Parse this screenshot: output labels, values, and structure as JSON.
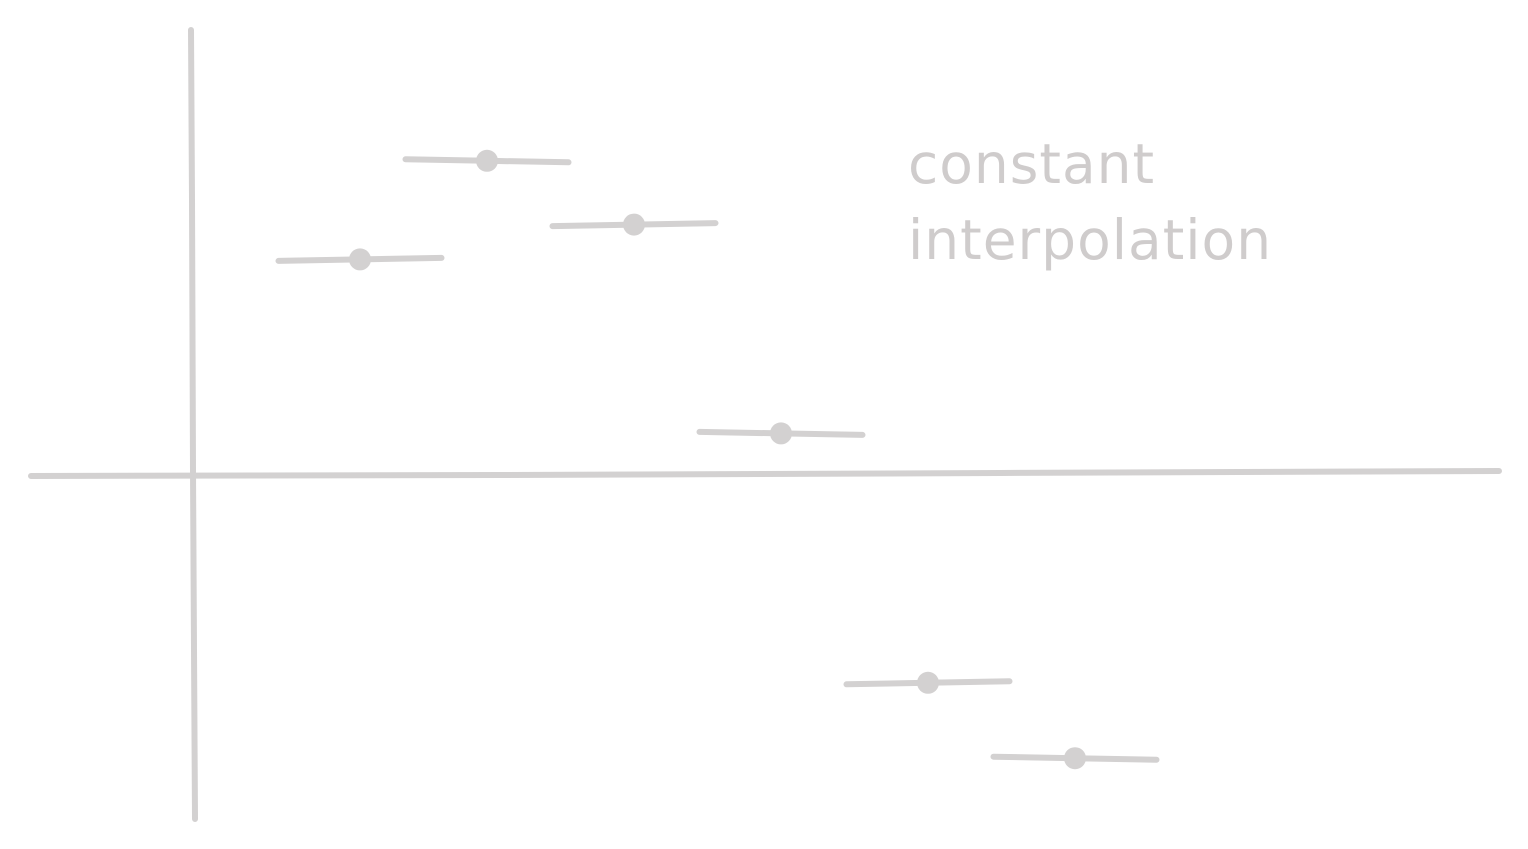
{
  "diagram": {
    "annotation_lines": [
      "constant",
      "interpolation"
    ],
    "stroke_color": "#d3d1d1",
    "text_color": "#cfcccc",
    "background": "#ffffff"
  },
  "chart_data": {
    "type": "step",
    "title": "",
    "xlabel": "",
    "ylabel": "",
    "grid": false,
    "ylim": [
      -6,
      8
    ],
    "x": [
      1,
      2,
      3,
      4,
      5,
      6
    ],
    "values": [
      3.7,
      5.4,
      4.3,
      0.7,
      -3.6,
      -4.9
    ],
    "segment_width": 1
  }
}
